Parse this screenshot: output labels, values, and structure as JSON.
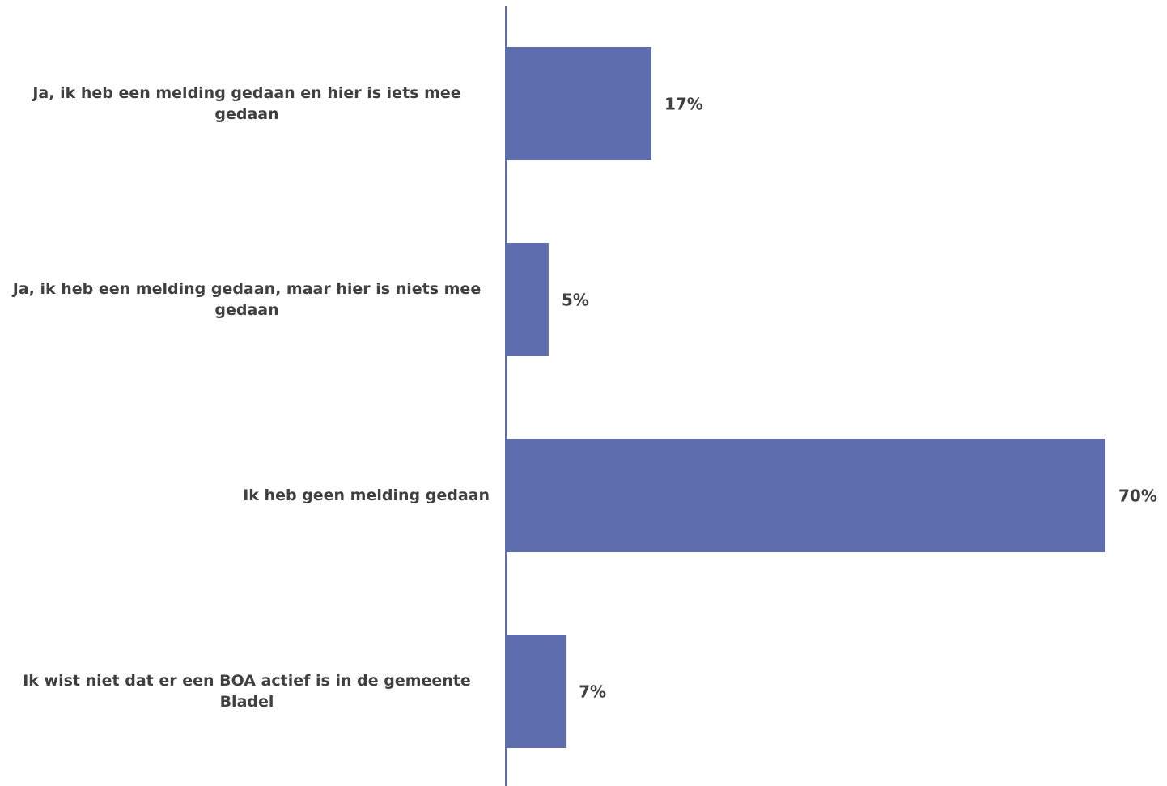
{
  "chart_data": {
    "type": "hbar",
    "categories": [
      "Ja, ik heb een melding gedaan en hier is iets mee gedaan",
      "Ja, ik heb een melding gedaan, maar hier is niets mee gedaan",
      "Ik heb geen melding gedaan",
      "Ik wist niet dat er een BOA actief is in de gemeente Bladel"
    ],
    "values": [
      17,
      5,
      70,
      7
    ],
    "value_labels": [
      "17%",
      "5%",
      "70%",
      "7%"
    ],
    "color": "#5e6dad"
  }
}
